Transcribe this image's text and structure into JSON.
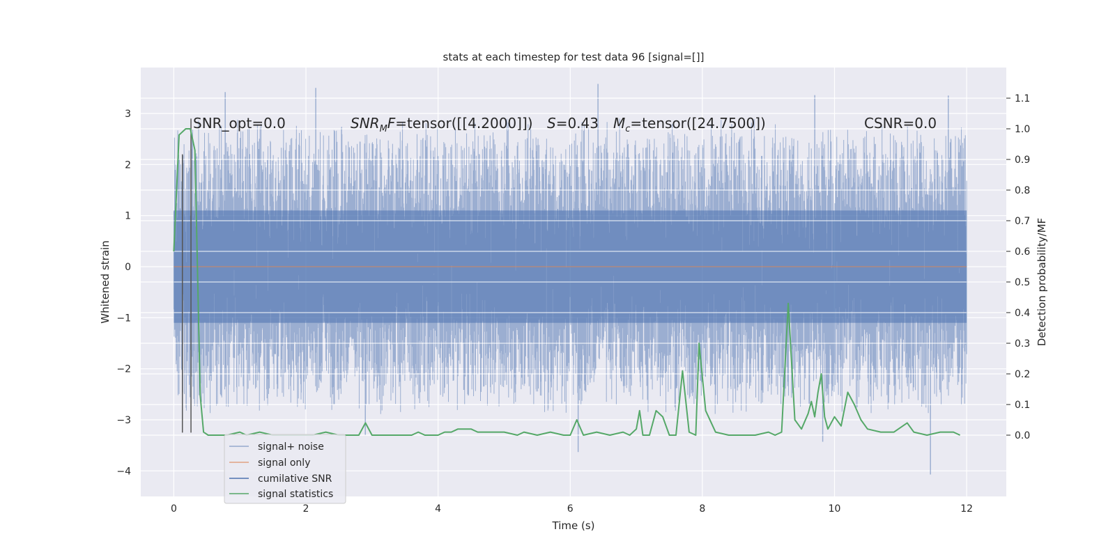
{
  "chart_data": {
    "type": "line",
    "title": "stats at each timestep for test data 96 [signal=[]]",
    "xlabel": "Time (s)",
    "ylabel": "Whitened strain",
    "ylabel_right": "Detection probability/MF",
    "xlim": [
      -0.5,
      12.6
    ],
    "ylim": [
      -4.5,
      3.9
    ],
    "ylim_right": [
      -0.2,
      1.2
    ],
    "x_ticks": [
      0,
      2,
      4,
      6,
      8,
      10,
      12
    ],
    "x_tick_labels": [
      "0",
      "2",
      "4",
      "6",
      "8",
      "10",
      "12"
    ],
    "y_ticks": [
      -4,
      -3,
      -2,
      -1,
      0,
      1,
      2,
      3
    ],
    "y_tick_labels": [
      "−4",
      "−3",
      "−2",
      "−1",
      "0",
      "1",
      "2",
      "3"
    ],
    "y2_ticks": [
      0.0,
      0.1,
      0.2,
      0.3,
      0.4,
      0.5,
      0.6,
      0.7,
      0.8,
      0.9,
      1.0,
      1.1
    ],
    "y2_tick_labels": [
      "0.0",
      "0.1",
      "0.2",
      "0.3",
      "0.4",
      "0.5",
      "0.6",
      "0.7",
      "0.8",
      "0.9",
      "1.0",
      "1.1"
    ],
    "grid": true,
    "annotations": {
      "snr_opt": "SNR_opt=0.0",
      "snr_mf_label": "SNR",
      "snr_mf_sub": "M",
      "snr_mf_F": "F",
      "snr_mf_value": "=tensor([[4.2000]])",
      "s_label": "S",
      "s_value": "=0.43",
      "mc_label": "M",
      "mc_sub": "c",
      "mc_value": "=tensor([24.7500])",
      "csnr": "CSNR=0.0"
    },
    "noise": {
      "duration": 12.0,
      "n_samples": 2400,
      "sigma": 0.95,
      "typical_max": 2.3,
      "peaks": [
        {
          "x": 0.78,
          "y": 3.42
        },
        {
          "x": 2.15,
          "y": 3.5
        },
        {
          "x": 6.42,
          "y": 3.58
        },
        {
          "x": 9.7,
          "y": 3.36
        },
        {
          "x": 11.72,
          "y": 3.35
        },
        {
          "x": 11.45,
          "y": -4.07
        },
        {
          "x": 6.12,
          "y": -3.63
        },
        {
          "x": 9.82,
          "y": -3.43
        },
        {
          "x": 2.9,
          "y": -3.3
        }
      ]
    },
    "vlines": [
      {
        "x": 0.13,
        "y_top": 2.2,
        "y_bottom": -3.25
      },
      {
        "x": 0.26,
        "y_top": 2.9,
        "y_bottom": -3.25
      }
    ],
    "series": [
      {
        "name": "signal+ noise",
        "axis": "left",
        "color": "#4C72B0",
        "note": "dense noise band rendered from noise parameters"
      },
      {
        "name": "signal only",
        "axis": "left",
        "color": "#DD8452",
        "x": [
          0,
          12
        ],
        "y": [
          0,
          0
        ]
      },
      {
        "name": "cumilative SNR",
        "axis": "left",
        "color": "#4C72B0",
        "x": [],
        "y": []
      },
      {
        "name": "signal statistics",
        "axis": "right",
        "color": "#55A868",
        "x": [
          0.0,
          0.08,
          0.18,
          0.25,
          0.32,
          0.4,
          0.45,
          0.52,
          0.65,
          0.8,
          1.0,
          1.1,
          1.3,
          1.5,
          1.8,
          2.1,
          2.3,
          2.5,
          2.8,
          2.9,
          3.0,
          3.3,
          3.6,
          3.7,
          3.8,
          4.0,
          4.1,
          4.2,
          4.3,
          4.5,
          4.6,
          4.8,
          5.0,
          5.2,
          5.3,
          5.5,
          5.7,
          5.9,
          6.0,
          6.1,
          6.2,
          6.4,
          6.6,
          6.8,
          6.9,
          7.0,
          7.05,
          7.1,
          7.2,
          7.3,
          7.4,
          7.5,
          7.6,
          7.7,
          7.8,
          7.9,
          7.95,
          8.05,
          8.2,
          8.4,
          8.6,
          8.8,
          9.0,
          9.1,
          9.2,
          9.3,
          9.4,
          9.5,
          9.6,
          9.65,
          9.7,
          9.75,
          9.8,
          9.85,
          9.9,
          10.0,
          10.1,
          10.2,
          10.3,
          10.4,
          10.5,
          10.7,
          10.9,
          11.1,
          11.2,
          11.4,
          11.6,
          11.8,
          11.9
        ],
        "y": [
          0.6,
          0.98,
          1.0,
          1.0,
          0.93,
          0.13,
          0.01,
          0.0,
          0.0,
          0.0,
          0.01,
          0.0,
          0.01,
          0.0,
          0.0,
          0.0,
          0.01,
          0.0,
          0.0,
          0.04,
          0.0,
          0.0,
          0.0,
          0.01,
          0.0,
          0.0,
          0.01,
          0.01,
          0.02,
          0.02,
          0.01,
          0.01,
          0.01,
          0.0,
          0.01,
          0.0,
          0.01,
          0.0,
          0.0,
          0.05,
          0.0,
          0.01,
          0.0,
          0.01,
          0.0,
          0.02,
          0.08,
          0.0,
          0.0,
          0.08,
          0.06,
          0.0,
          0.0,
          0.21,
          0.01,
          0.0,
          0.3,
          0.08,
          0.01,
          0.0,
          0.0,
          0.0,
          0.01,
          0.0,
          0.01,
          0.43,
          0.05,
          0.02,
          0.07,
          0.11,
          0.06,
          0.14,
          0.2,
          0.06,
          0.02,
          0.06,
          0.03,
          0.14,
          0.1,
          0.05,
          0.02,
          0.01,
          0.01,
          0.04,
          0.01,
          0.0,
          0.01,
          0.01,
          0.0
        ]
      }
    ],
    "legend": {
      "position": "lower-left",
      "entries": [
        {
          "label": "signal+ noise",
          "color": "#4C72B0",
          "alpha": 0.5
        },
        {
          "label": "signal only",
          "color": "#DD8452",
          "alpha": 0.6
        },
        {
          "label": "cumilative SNR",
          "color": "#4C72B0",
          "alpha": 1.0
        },
        {
          "label": "signal statistics",
          "color": "#55A868",
          "alpha": 1.0
        }
      ]
    },
    "colors": {
      "axes_bg": "#EAEAF2",
      "grid": "#FFFFFF",
      "vline": "#555555"
    }
  }
}
